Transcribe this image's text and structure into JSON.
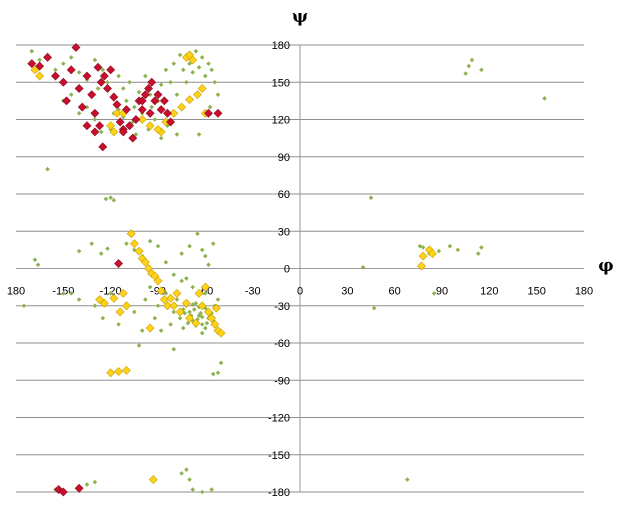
{
  "chart_data": {
    "type": "scatter",
    "xlabel": "φ",
    "ylabel": "ψ",
    "xlim": [
      -180,
      180
    ],
    "ylim": [
      -180,
      180
    ],
    "xticks": [
      "180",
      "-150",
      "-120",
      "-90",
      "-60",
      "-30",
      "0",
      "30",
      "60",
      "90",
      "120",
      "150",
      "180"
    ],
    "yticks": [
      "180",
      "150",
      "120",
      "90",
      "60",
      "30",
      "0",
      "-30",
      "-60",
      "-90",
      "-120",
      "-150",
      "-180"
    ],
    "grid": "horizontal",
    "legend": "none",
    "series": [
      {
        "color": "#8cb350",
        "marker": "small-diamond",
        "points": [
          [
            -170,
            175
          ],
          [
            -165,
            168
          ],
          [
            -160,
            172
          ],
          [
            -155,
            160
          ],
          [
            -150,
            165
          ],
          [
            -145,
            170
          ],
          [
            -140,
            158
          ],
          [
            -135,
            152
          ],
          [
            -130,
            168
          ],
          [
            -128,
            145
          ],
          [
            -125,
            160
          ],
          [
            -122,
            150
          ],
          [
            -118,
            140
          ],
          [
            -115,
            155
          ],
          [
            -112,
            145
          ],
          [
            -110,
            135
          ],
          [
            -108,
            150
          ],
          [
            -105,
            130
          ],
          [
            -102,
            142
          ],
          [
            -100,
            125
          ],
          [
            -98,
            155
          ],
          [
            -95,
            140
          ],
          [
            -92,
            120
          ],
          [
            -90,
            135
          ],
          [
            -88,
            148
          ],
          [
            -85,
            160
          ],
          [
            -82,
            150
          ],
          [
            -80,
            165
          ],
          [
            -78,
            140
          ],
          [
            -76,
            172
          ],
          [
            -74,
            160
          ],
          [
            -72,
            150
          ],
          [
            -70,
            165
          ],
          [
            -68,
            158
          ],
          [
            -66,
            175
          ],
          [
            -64,
            162
          ],
          [
            -62,
            170
          ],
          [
            -60,
            155
          ],
          [
            -58,
            165
          ],
          [
            -56,
            160
          ],
          [
            -54,
            150
          ],
          [
            -52,
            140
          ],
          [
            -135,
            130
          ],
          [
            -130,
            120
          ],
          [
            -126,
            110
          ],
          [
            -120,
            112
          ],
          [
            -115,
            128
          ],
          [
            -106,
            118
          ],
          [
            -96,
            112
          ],
          [
            -88,
            105
          ],
          [
            -84,
            115
          ],
          [
            -78,
            108
          ],
          [
            -64,
            108
          ],
          [
            -60,
            125
          ],
          [
            -57,
            130
          ],
          [
            -145,
            140
          ],
          [
            -150,
            135
          ],
          [
            -140,
            125
          ],
          [
            -118,
            125
          ],
          [
            -112,
            122
          ],
          [
            -104,
            108
          ],
          [
            -94,
            130
          ],
          [
            -86,
            118
          ],
          [
            -160,
            80
          ],
          [
            -120,
            57
          ],
          [
            -118,
            55
          ],
          [
            -123,
            56
          ],
          [
            -168,
            7
          ],
          [
            -166,
            3
          ],
          [
            -140,
            14
          ],
          [
            -132,
            20
          ],
          [
            -126,
            12
          ],
          [
            -122,
            16
          ],
          [
            -110,
            20
          ],
          [
            -105,
            15
          ],
          [
            -100,
            10
          ],
          [
            -95,
            22
          ],
          [
            -90,
            18
          ],
          [
            -85,
            5
          ],
          [
            -80,
            -5
          ],
          [
            -75,
            12
          ],
          [
            -70,
            18
          ],
          [
            -65,
            28
          ],
          [
            -62,
            15
          ],
          [
            -60,
            10
          ],
          [
            -58,
            3
          ],
          [
            -55,
            20
          ],
          [
            -72,
            -8
          ],
          [
            -150,
            -20
          ],
          [
            -140,
            -25
          ],
          [
            -130,
            -30
          ],
          [
            -125,
            -40
          ],
          [
            -120,
            -20
          ],
          [
            -115,
            -45
          ],
          [
            -110,
            -30
          ],
          [
            -105,
            -35
          ],
          [
            -102,
            -62
          ],
          [
            -100,
            -50
          ],
          [
            -98,
            -25
          ],
          [
            -95,
            -15
          ],
          [
            -92,
            -40
          ],
          [
            -90,
            -30
          ],
          [
            -88,
            -50
          ],
          [
            -85,
            -20
          ],
          [
            -82,
            -45
          ],
          [
            -80,
            -35
          ],
          [
            -78,
            -25
          ],
          [
            -76,
            -40
          ],
          [
            -74,
            -48
          ],
          [
            -72,
            -30
          ],
          [
            -70,
            -35
          ],
          [
            -68,
            -42
          ],
          [
            -66,
            -28
          ],
          [
            -64,
            -38
          ],
          [
            -62,
            -45
          ],
          [
            -60,
            -32
          ],
          [
            -58,
            -40
          ],
          [
            -56,
            -36
          ],
          [
            -54,
            -30
          ],
          [
            -52,
            -25
          ],
          [
            -69,
            -38
          ],
          [
            -67,
            -33
          ],
          [
            -65,
            -41
          ],
          [
            -63,
            -36
          ],
          [
            -61,
            -30
          ],
          [
            -59,
            -44
          ],
          [
            -57,
            -38
          ],
          [
            -55,
            -42
          ],
          [
            -71,
            -44
          ],
          [
            -73,
            -36
          ],
          [
            -66,
            -46
          ],
          [
            -60,
            -48
          ],
          [
            -64,
            -31
          ],
          [
            -62,
            -39
          ],
          [
            -58,
            -34
          ],
          [
            -68,
            -29
          ],
          [
            -70,
            -41
          ],
          [
            -74,
            -33
          ],
          [
            -62,
            -52
          ],
          [
            -55,
            -85
          ],
          [
            -52,
            -84
          ],
          [
            -50,
            -76
          ],
          [
            -75,
            -10
          ],
          [
            -68,
            -15
          ],
          [
            -60,
            -20
          ],
          [
            -155,
            -178
          ],
          [
            -140,
            -178
          ],
          [
            -135,
            -174
          ],
          [
            -130,
            -172
          ],
          [
            -75,
            -165
          ],
          [
            -72,
            -162
          ],
          [
            -70,
            -170
          ],
          [
            -68,
            -178
          ],
          [
            -62,
            -180
          ],
          [
            -56,
            -178
          ],
          [
            -175,
            -30
          ],
          [
            -80,
            -65
          ],
          [
            -145,
            -20
          ],
          [
            40,
            1
          ],
          [
            45,
            57
          ],
          [
            47,
            -32
          ],
          [
            76,
            18
          ],
          [
            78,
            17
          ],
          [
            85,
            -20
          ],
          [
            82,
            12
          ],
          [
            88,
            14
          ],
          [
            95,
            18
          ],
          [
            100,
            15
          ],
          [
            113,
            12
          ],
          [
            115,
            17
          ],
          [
            105,
            157
          ],
          [
            107,
            163
          ],
          [
            109,
            168
          ],
          [
            115,
            160
          ],
          [
            155,
            137
          ],
          [
            68,
            -170
          ]
        ]
      },
      {
        "color": "#ffd21a",
        "marker": "diamond",
        "points": [
          [
            -168,
            160
          ],
          [
            -165,
            155
          ],
          [
            -72,
            170
          ],
          [
            -70,
            172
          ],
          [
            -68,
            168
          ],
          [
            -62,
            145
          ],
          [
            -65,
            140
          ],
          [
            -70,
            136
          ],
          [
            -75,
            130
          ],
          [
            -80,
            125
          ],
          [
            -85,
            118
          ],
          [
            -88,
            110
          ],
          [
            -90,
            112
          ],
          [
            -120,
            115
          ],
          [
            -118,
            110
          ],
          [
            -116,
            125
          ],
          [
            -112,
            125
          ],
          [
            -100,
            120
          ],
          [
            -95,
            115
          ],
          [
            -60,
            125
          ],
          [
            -107,
            28
          ],
          [
            -105,
            20
          ],
          [
            -102,
            14
          ],
          [
            -100,
            8
          ],
          [
            -98,
            5
          ],
          [
            -96,
            0
          ],
          [
            -94,
            -4
          ],
          [
            -92,
            -6
          ],
          [
            -90,
            -10
          ],
          [
            -88,
            -18
          ],
          [
            -86,
            -25
          ],
          [
            -84,
            -30
          ],
          [
            -82,
            -24
          ],
          [
            -80,
            -30
          ],
          [
            -78,
            -20
          ],
          [
            -76,
            -35
          ],
          [
            -72,
            -28
          ],
          [
            -70,
            -40
          ],
          [
            -66,
            -44
          ],
          [
            -64,
            -20
          ],
          [
            -62,
            -30
          ],
          [
            -60,
            -15
          ],
          [
            -58,
            -35
          ],
          [
            -56,
            -40
          ],
          [
            -54,
            -45
          ],
          [
            -52,
            -50
          ],
          [
            -50,
            -52
          ],
          [
            -53,
            -32
          ],
          [
            -112,
            -20
          ],
          [
            -110,
            -30
          ],
          [
            -114,
            -35
          ],
          [
            -118,
            -24
          ],
          [
            -124,
            -28
          ],
          [
            -127,
            -25
          ],
          [
            -120,
            -84
          ],
          [
            -115,
            -83
          ],
          [
            -110,
            -82
          ],
          [
            -95,
            -48
          ],
          [
            -93,
            -170
          ],
          [
            78,
            10
          ],
          [
            77,
            2
          ],
          [
            82,
            15
          ],
          [
            84,
            12
          ]
        ]
      },
      {
        "color": "#c8102e",
        "marker": "diamond",
        "points": [
          [
            -170,
            165
          ],
          [
            -165,
            163
          ],
          [
            -160,
            170
          ],
          [
            -155,
            155
          ],
          [
            -150,
            150
          ],
          [
            -148,
            135
          ],
          [
            -145,
            160
          ],
          [
            -142,
            178
          ],
          [
            -140,
            145
          ],
          [
            -138,
            130
          ],
          [
            -135,
            155
          ],
          [
            -132,
            140
          ],
          [
            -130,
            125
          ],
          [
            -128,
            162
          ],
          [
            -126,
            150
          ],
          [
            -124,
            155
          ],
          [
            -122,
            145
          ],
          [
            -120,
            160
          ],
          [
            -118,
            138
          ],
          [
            -116,
            132
          ],
          [
            -114,
            118
          ],
          [
            -112,
            112
          ],
          [
            -110,
            128
          ],
          [
            -108,
            115
          ],
          [
            -106,
            105
          ],
          [
            -104,
            120
          ],
          [
            -102,
            135
          ],
          [
            -100,
            128
          ],
          [
            -98,
            140
          ],
          [
            -96,
            145
          ],
          [
            -94,
            150
          ],
          [
            -92,
            135
          ],
          [
            -90,
            140
          ],
          [
            -88,
            128
          ],
          [
            -86,
            135
          ],
          [
            -84,
            125
          ],
          [
            -82,
            118
          ],
          [
            -125,
            98
          ],
          [
            -135,
            115
          ],
          [
            -130,
            110
          ],
          [
            -112,
            110
          ],
          [
            -100,
            135
          ],
          [
            -95,
            125
          ],
          [
            -58,
            125
          ],
          [
            -52,
            125
          ],
          [
            -127,
            115
          ],
          [
            -115,
            4
          ],
          [
            -153,
            -178
          ],
          [
            -150,
            -180
          ],
          [
            -140,
            -177
          ]
        ]
      }
    ]
  }
}
